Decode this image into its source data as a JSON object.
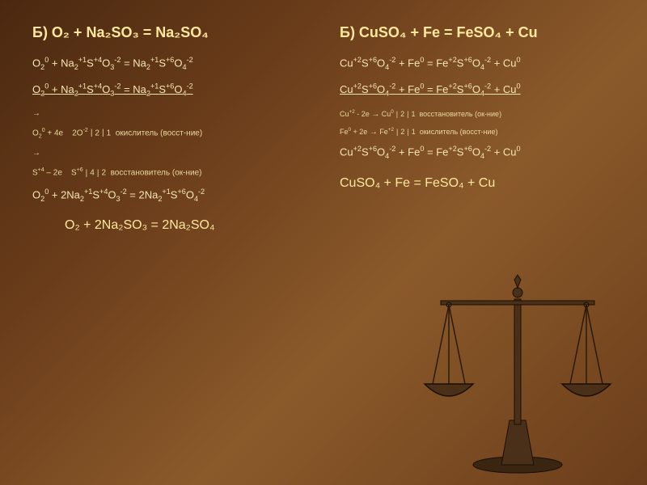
{
  "left": {
    "title": "Б) O₂ + Na₂SO₃ = Na₂SO₄",
    "lines": [
      {
        "cls": "line",
        "html": "O<sub>2</sub><sup>0</sup> + Na<sub>2</sub><sup>+1</sup>S<sup>+4</sup>O<sub>3</sub><sup>-2</sup> = Na<sub>2</sub><sup>+1</sup>S<sup>+6</sup>O<sub>4</sub><sup>-2</sup>"
      },
      {
        "cls": "line",
        "html": "<span class='u'>O<sub>2</sub><sup>0</sup> + Na<sub>2</sub><sup>+1</sup>S<sup>+4</sup>O<sub>3</sub><sup>-2</sup> = Na<sub>2</sub><sup>+1</sup>S<sup>+6</sup>O<sub>4</sub><sup>-2</sup></span>"
      },
      {
        "cls": "line-small",
        "html": "<span class='arrow'>→</span>"
      },
      {
        "cls": "line-small",
        "html": "O<sub>2</sub><sup>0</sup> + 4e&nbsp;&nbsp;&nbsp;&nbsp;2O<sup>-2</sup><span class='sep'>|</span>2<span class='sep'>|</span>1&nbsp;&nbsp;окислитель (восст-ние)"
      },
      {
        "cls": "line-small",
        "html": "<span class='arrow'>→</span>"
      },
      {
        "cls": "line-small",
        "html": "S<sup>+4</sup> – 2e&nbsp;&nbsp;&nbsp;&nbsp;S<sup>+6</sup><span class='sep'>|</span>4<span class='sep'>|</span>2&nbsp;&nbsp;восстановитель (ок-ние)"
      },
      {
        "cls": "line",
        "html": "O<sub>2</sub><sup>0</sup> + 2Na<sub>2</sub><sup>+1</sup>S<sup>+4</sup>O<sub>3</sub><sup>-2</sup> = 2Na<sub>2</sub><sup>+1</sup>S<sup>+6</sup>O<sub>4</sub><sup>-2</sup>"
      }
    ],
    "result": "O₂ + 2Na₂SO₃ = 2Na₂SO₄"
  },
  "right": {
    "title": "Б) CuSO₄ + Fe = FeSO₄ + Cu",
    "lines": [
      {
        "cls": "line",
        "html": "Cu<sup>+2</sup>S<sup>+6</sup>O<sub>4</sub><sup>-2</sup> + Fe<sup>0</sup> = Fe<sup>+2</sup>S<sup>+6</sup>O<sub>4</sub><sup>-2</sup> + Cu<sup>0</sup>"
      },
      {
        "cls": "line",
        "html": "<span class='u'>Cu<sup>+2</sup>S<sup>+6</sup>O<sub>4</sub><sup>-2</sup> + Fe<sup>0</sup> = Fe<sup>+2</sup>S<sup>+6</sup>O<sub>4</sub><sup>-2</sup> + Cu<sup>0</sup></span>"
      },
      {
        "cls": "line-tiny",
        "html": "Cu<sup>+2</sup> - 2e <span class='arrow'>→</span> Cu<sup>0</sup><span class='sep'>|</span>2<span class='sep'>|</span>1&nbsp;&nbsp;восстановитель (ок-ние)"
      },
      {
        "cls": "line-tiny",
        "html": "Fe<sup>0</sup> + 2e <span class='arrow'>→</span> Fe<sup>+2</sup><span class='sep'>|</span>2<span class='sep'>|</span>1&nbsp;&nbsp;окислитель (восст-ние)"
      },
      {
        "cls": "line",
        "html": "Cu<sup>+2</sup>S<sup>+6</sup>O<sub>4</sub><sup>-2</sup> + Fe<sup>0</sup> = Fe<sup>+2</sup>S<sup>+6</sup>O<sub>4</sub><sup>-2</sup> + Cu<sup>0</sup>"
      }
    ],
    "result": "CuSO₄ + Fe = FeSO₄ + Cu"
  },
  "colors": {
    "bg_start": "#4a2810",
    "bg_mid": "#8b5a2b",
    "text": "#f5e6b3",
    "scale_stroke": "#2b1a0a",
    "scale_fill": "#4a3018"
  }
}
